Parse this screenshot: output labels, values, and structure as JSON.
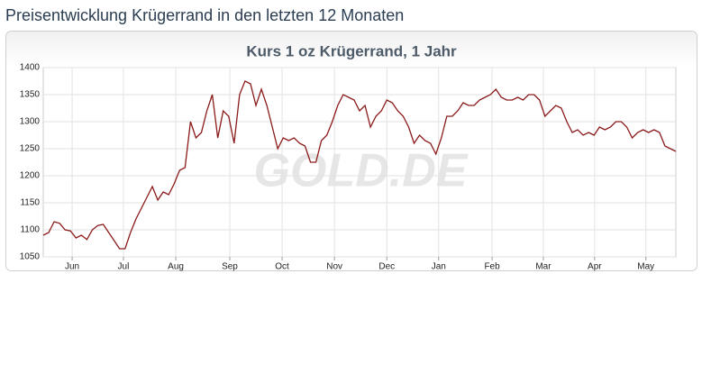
{
  "header": {
    "title": "Preisentwicklung Krügerrand in den letzten 12 Monaten"
  },
  "chart_data": {
    "type": "line",
    "title": "Kurs 1 oz Krügerrand, 1 Jahr",
    "watermark": "GOLD.DE",
    "series": [
      {
        "name": "Kurs",
        "color": "#8b1a1a",
        "values": [
          1090,
          1095,
          1115,
          1112,
          1100,
          1098,
          1085,
          1090,
          1082,
          1100,
          1108,
          1110,
          1095,
          1080,
          1065,
          1065,
          1095,
          1120,
          1140,
          1160,
          1180,
          1155,
          1170,
          1165,
          1185,
          1210,
          1215,
          1300,
          1270,
          1280,
          1320,
          1350,
          1270,
          1320,
          1310,
          1260,
          1350,
          1375,
          1370,
          1330,
          1360,
          1330,
          1290,
          1250,
          1270,
          1265,
          1270,
          1260,
          1255,
          1225,
          1225,
          1265,
          1275,
          1300,
          1330,
          1350,
          1345,
          1340,
          1320,
          1330,
          1290,
          1310,
          1320,
          1340,
          1335,
          1320,
          1310,
          1290,
          1260,
          1275,
          1265,
          1260,
          1240,
          1270,
          1310,
          1310,
          1320,
          1335,
          1330,
          1330,
          1340,
          1345,
          1350,
          1360,
          1345,
          1340,
          1340,
          1345,
          1340,
          1350,
          1350,
          1340,
          1310,
          1320,
          1330,
          1325,
          1300,
          1280,
          1285,
          1275,
          1280,
          1275,
          1290,
          1285,
          1290,
          1300,
          1300,
          1290,
          1270,
          1280,
          1285,
          1280,
          1285,
          1280,
          1255,
          1250,
          1245
        ]
      }
    ],
    "xlim": [
      0,
      116
    ],
    "xticks": [
      {
        "value": 5.3,
        "label": "Jun"
      },
      {
        "value": 14.7,
        "label": "Jul"
      },
      {
        "value": 24.3,
        "label": "Aug"
      },
      {
        "value": 34.2,
        "label": "Sep"
      },
      {
        "value": 43.8,
        "label": "Oct"
      },
      {
        "value": 53.4,
        "label": "Nov"
      },
      {
        "value": 63,
        "label": "Dec"
      },
      {
        "value": 72.5,
        "label": "Jan"
      },
      {
        "value": 82.3,
        "label": "Feb"
      },
      {
        "value": 91.7,
        "label": "Mar"
      },
      {
        "value": 101.1,
        "label": "Apr"
      },
      {
        "value": 110.5,
        "label": "May"
      }
    ],
    "ylim": [
      1050,
      1400
    ],
    "yticks": [
      1050,
      1100,
      1150,
      1200,
      1250,
      1300,
      1350,
      1400
    ],
    "grid": true
  }
}
